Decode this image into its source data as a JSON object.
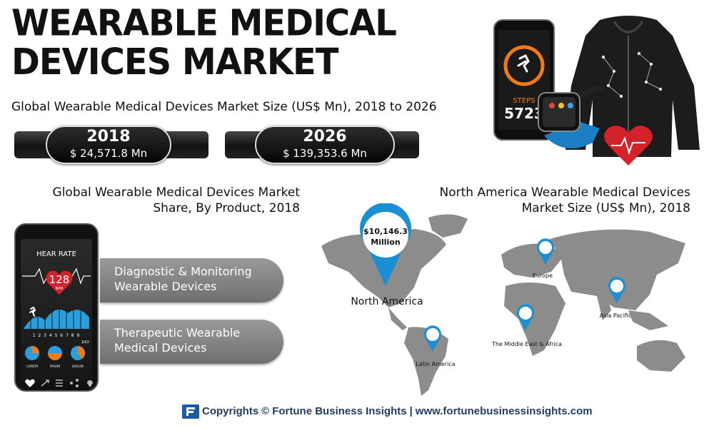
{
  "header": {
    "title_line1": "WEARABLE MEDICAL",
    "title_line2": "DEVICES MARKET",
    "subtitle": "Global Wearable Medical Devices Market Size (US$ Mn), 2018 to 2026"
  },
  "market_size": [
    {
      "year": "2018",
      "value": "$ 24,571.8 Mn"
    },
    {
      "year": "2026",
      "value": "$ 139,353.6 Mn"
    }
  ],
  "illustration": {
    "phone_steps_label": "STEPS",
    "phone_steps_value": "5723"
  },
  "product_share": {
    "title_line1": "Global Wearable Medical Devices Market",
    "title_line2": "Share, By Product, 2018",
    "phone": {
      "heart_rate_label": "HEAR RATE",
      "bpm_value": "128",
      "bpm_unit": "BPM",
      "axis_ticks": "1 2 3 4 5 6 7 8 9",
      "month": "JULY",
      "pie_labels": [
        "LOREM",
        "IPSUM",
        "DOLOR"
      ]
    },
    "categories": [
      {
        "line1": "Diagnostic & Monitoring",
        "line2": "Wearable Devices"
      },
      {
        "line1": "Therapeutic Wearable",
        "line2": "Medical Devices"
      }
    ]
  },
  "north_america": {
    "title_line1": "North America Wearable Medical Devices",
    "title_line2": "Market Size (US$ Mn), 2018",
    "callout_line1": "$10,146.3",
    "callout_line2": "Million",
    "region_label": "North America",
    "regions": [
      "Europe",
      "Asia Pacific",
      "The Middle East & Africa",
      "Latin America"
    ]
  },
  "footer": {
    "copyright": "Copyrights",
    "symbol": "©",
    "brand": "Fortune Business Insights",
    "separator": "|",
    "url": "www.fortunebusinessinsights.com"
  },
  "colors": {
    "map_land": "#8c8c8c",
    "pin_blue": "#1b8fd3",
    "category_bar": "#8a8a8a",
    "footer_text": "#223d64",
    "heart_red": "#d3222a"
  }
}
